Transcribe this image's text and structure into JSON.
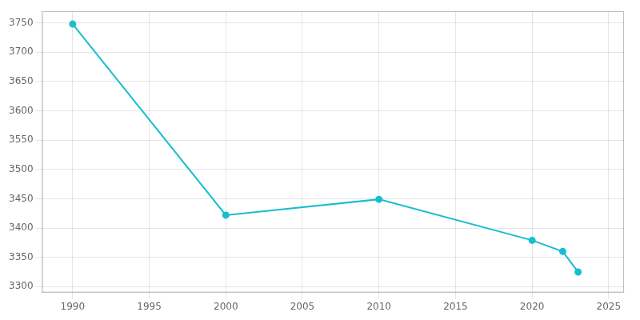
{
  "chart_data": {
    "type": "line",
    "x": [
      1990,
      2000,
      2010,
      2020,
      2022,
      2023
    ],
    "values": [
      3748,
      3422,
      3449,
      3379,
      3360,
      3325
    ],
    "color": "#17BECF",
    "marker": "circle",
    "line_style": "solid",
    "xlim": [
      1988,
      2026
    ],
    "xticks": [
      1990,
      1995,
      2000,
      2005,
      2010,
      2015,
      2020,
      2025
    ],
    "ylim": [
      3290,
      3770
    ],
    "yticks": [
      3300,
      3350,
      3400,
      3450,
      3500,
      3550,
      3600,
      3650,
      3700,
      3750
    ],
    "grid": true
  }
}
